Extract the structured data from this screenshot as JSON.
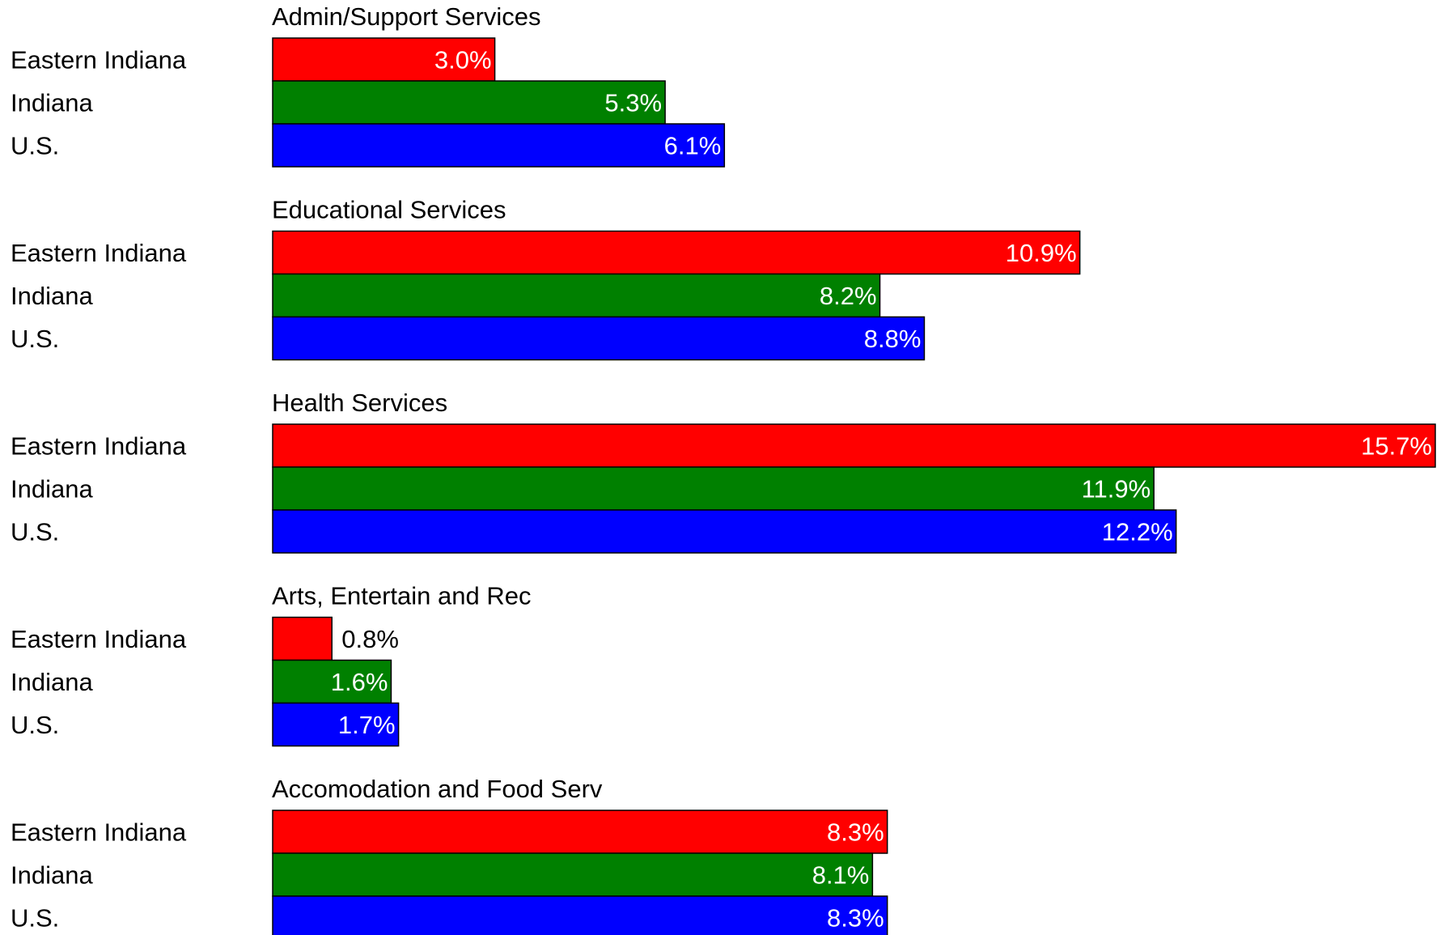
{
  "chart_data": {
    "type": "bar",
    "orientation": "horizontal",
    "grouping": "clustered",
    "title": "",
    "xlabel": "",
    "ylabel": "",
    "value_format": "percent, 1 decimal",
    "xlim": [
      0,
      15.7
    ],
    "grid": false,
    "series": [
      {
        "name": "Eastern Indiana",
        "color": "#ff0000",
        "values": [
          3.0,
          10.9,
          15.7,
          0.8,
          8.3
        ],
        "labels": [
          "3.0%",
          "10.9%",
          "15.7%",
          "0.8%",
          "8.3%"
        ]
      },
      {
        "name": "Indiana",
        "color": "#008000",
        "values": [
          5.3,
          8.2,
          11.9,
          1.6,
          8.1
        ],
        "labels": [
          "5.3%",
          "8.2%",
          "11.9%",
          "1.6%",
          "8.1%"
        ]
      },
      {
        "name": "U.S.",
        "color": "#0000ff",
        "values": [
          6.1,
          8.8,
          12.2,
          1.7,
          8.3
        ],
        "labels": [
          "6.1%",
          "8.8%",
          "12.2%",
          "1.7%",
          "8.3%"
        ]
      }
    ],
    "categories": [
      "Admin/Support Services",
      "Educational Services",
      "Health Services",
      "Arts, Entertain and Rec",
      "Accomodation and Food Serv"
    ]
  }
}
